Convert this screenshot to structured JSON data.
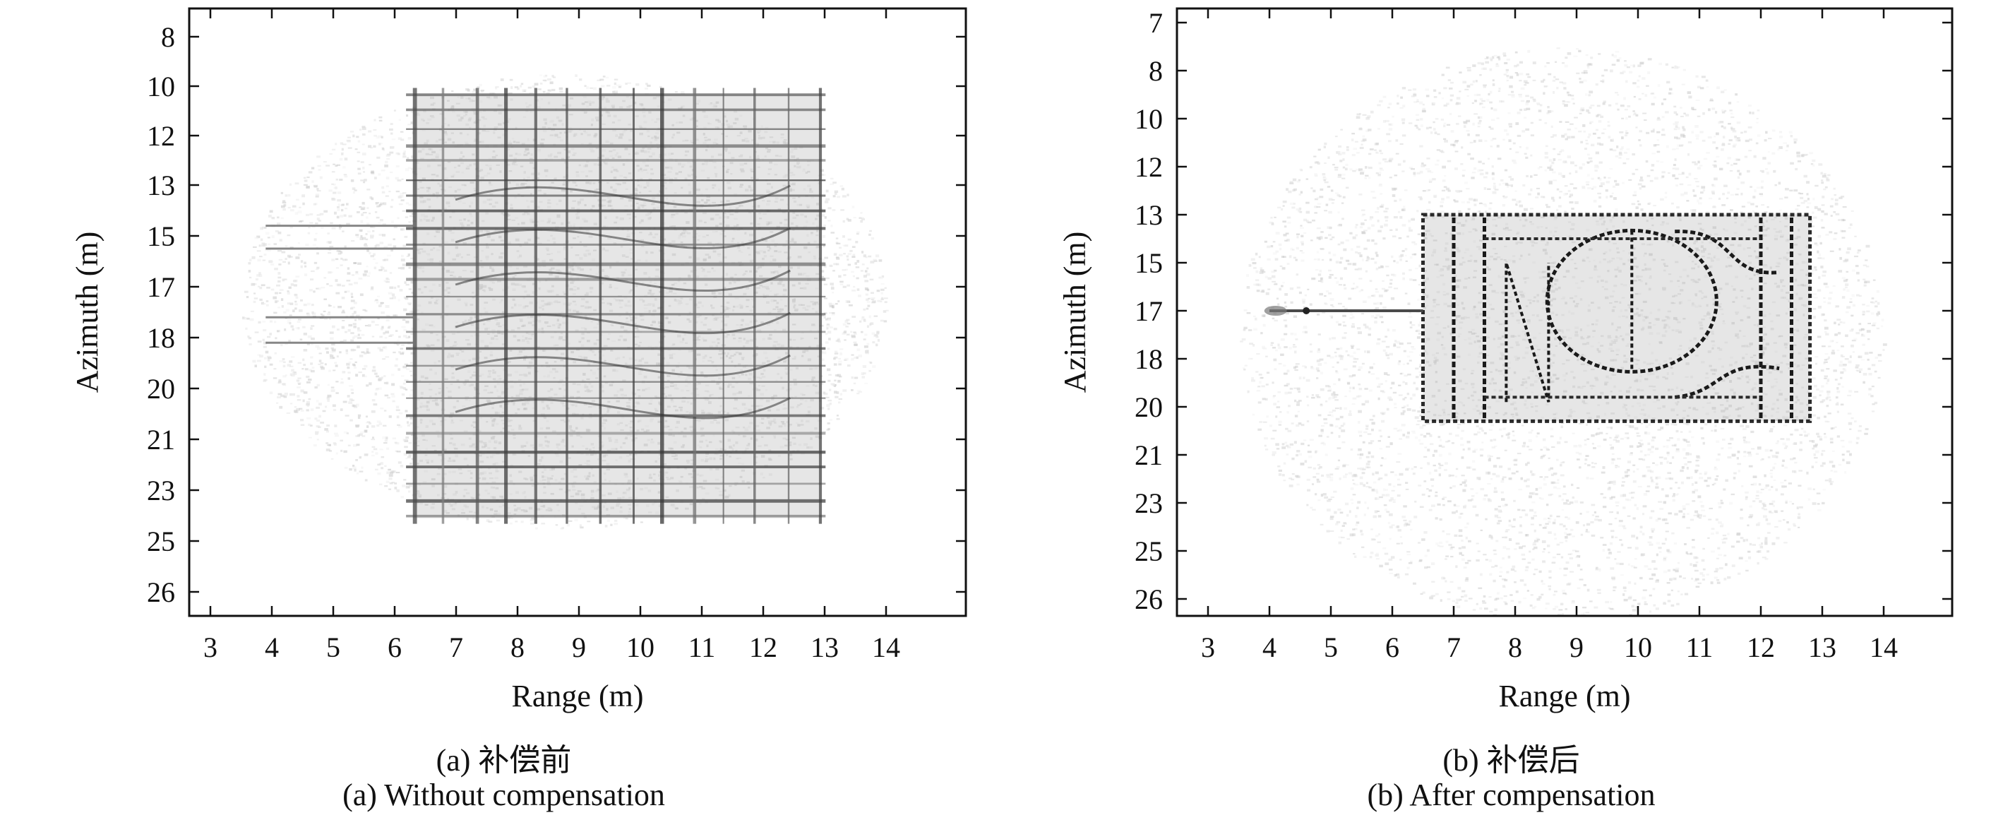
{
  "chart_data": [
    {
      "type": "heatmap",
      "panel": "a",
      "xlabel": "Range (m)",
      "ylabel": "Azimuth (m)",
      "x_ticks": [
        "3",
        "4",
        "5",
        "6",
        "7",
        "8",
        "9",
        "10",
        "11",
        "12",
        "13",
        "14"
      ],
      "y_ticks": [
        "8",
        "10",
        "12",
        "13",
        "15",
        "17",
        "18",
        "20",
        "21",
        "23",
        "25",
        "26"
      ],
      "caption_cn": "(a) 补偿前",
      "caption_en": "(a) Without compensation",
      "grid": false,
      "colormap": "grayscale (white = low, black = high)",
      "content": "defocused target: blurred rectangle with many horizontal/vertical streaks",
      "target_extent": {
        "range": [
          6.3,
          12.9
        ],
        "azimuth": [
          10.3,
          24.1
        ]
      },
      "clutter_extent": {
        "range": [
          3.5,
          14.0
        ],
        "azimuth": [
          9.5,
          24.5
        ]
      }
    },
    {
      "type": "heatmap",
      "panel": "b",
      "xlabel": "Range (m)",
      "ylabel": "Azimuth (m)",
      "x_ticks": [
        "3",
        "4",
        "5",
        "6",
        "7",
        "8",
        "9",
        "10",
        "11",
        "12",
        "13",
        "14"
      ],
      "y_ticks": [
        "7",
        "8",
        "10",
        "12",
        "13",
        "15",
        "17",
        "18",
        "20",
        "21",
        "23",
        "25",
        "26"
      ],
      "caption_cn": "(b) 补偿后",
      "caption_en": "(b) After compensation",
      "grid": false,
      "colormap": "grayscale (white = low, black = high)",
      "content": "focused target: rectangle with internal curved features and a thin protrusion toward range 4",
      "target_extent": {
        "range": [
          6.5,
          12.8
        ],
        "azimuth": [
          13.0,
          20.3
        ]
      },
      "clutter_extent": {
        "range": [
          3.5,
          14.0
        ],
        "azimuth": [
          7.5,
          26.5
        ]
      }
    }
  ]
}
